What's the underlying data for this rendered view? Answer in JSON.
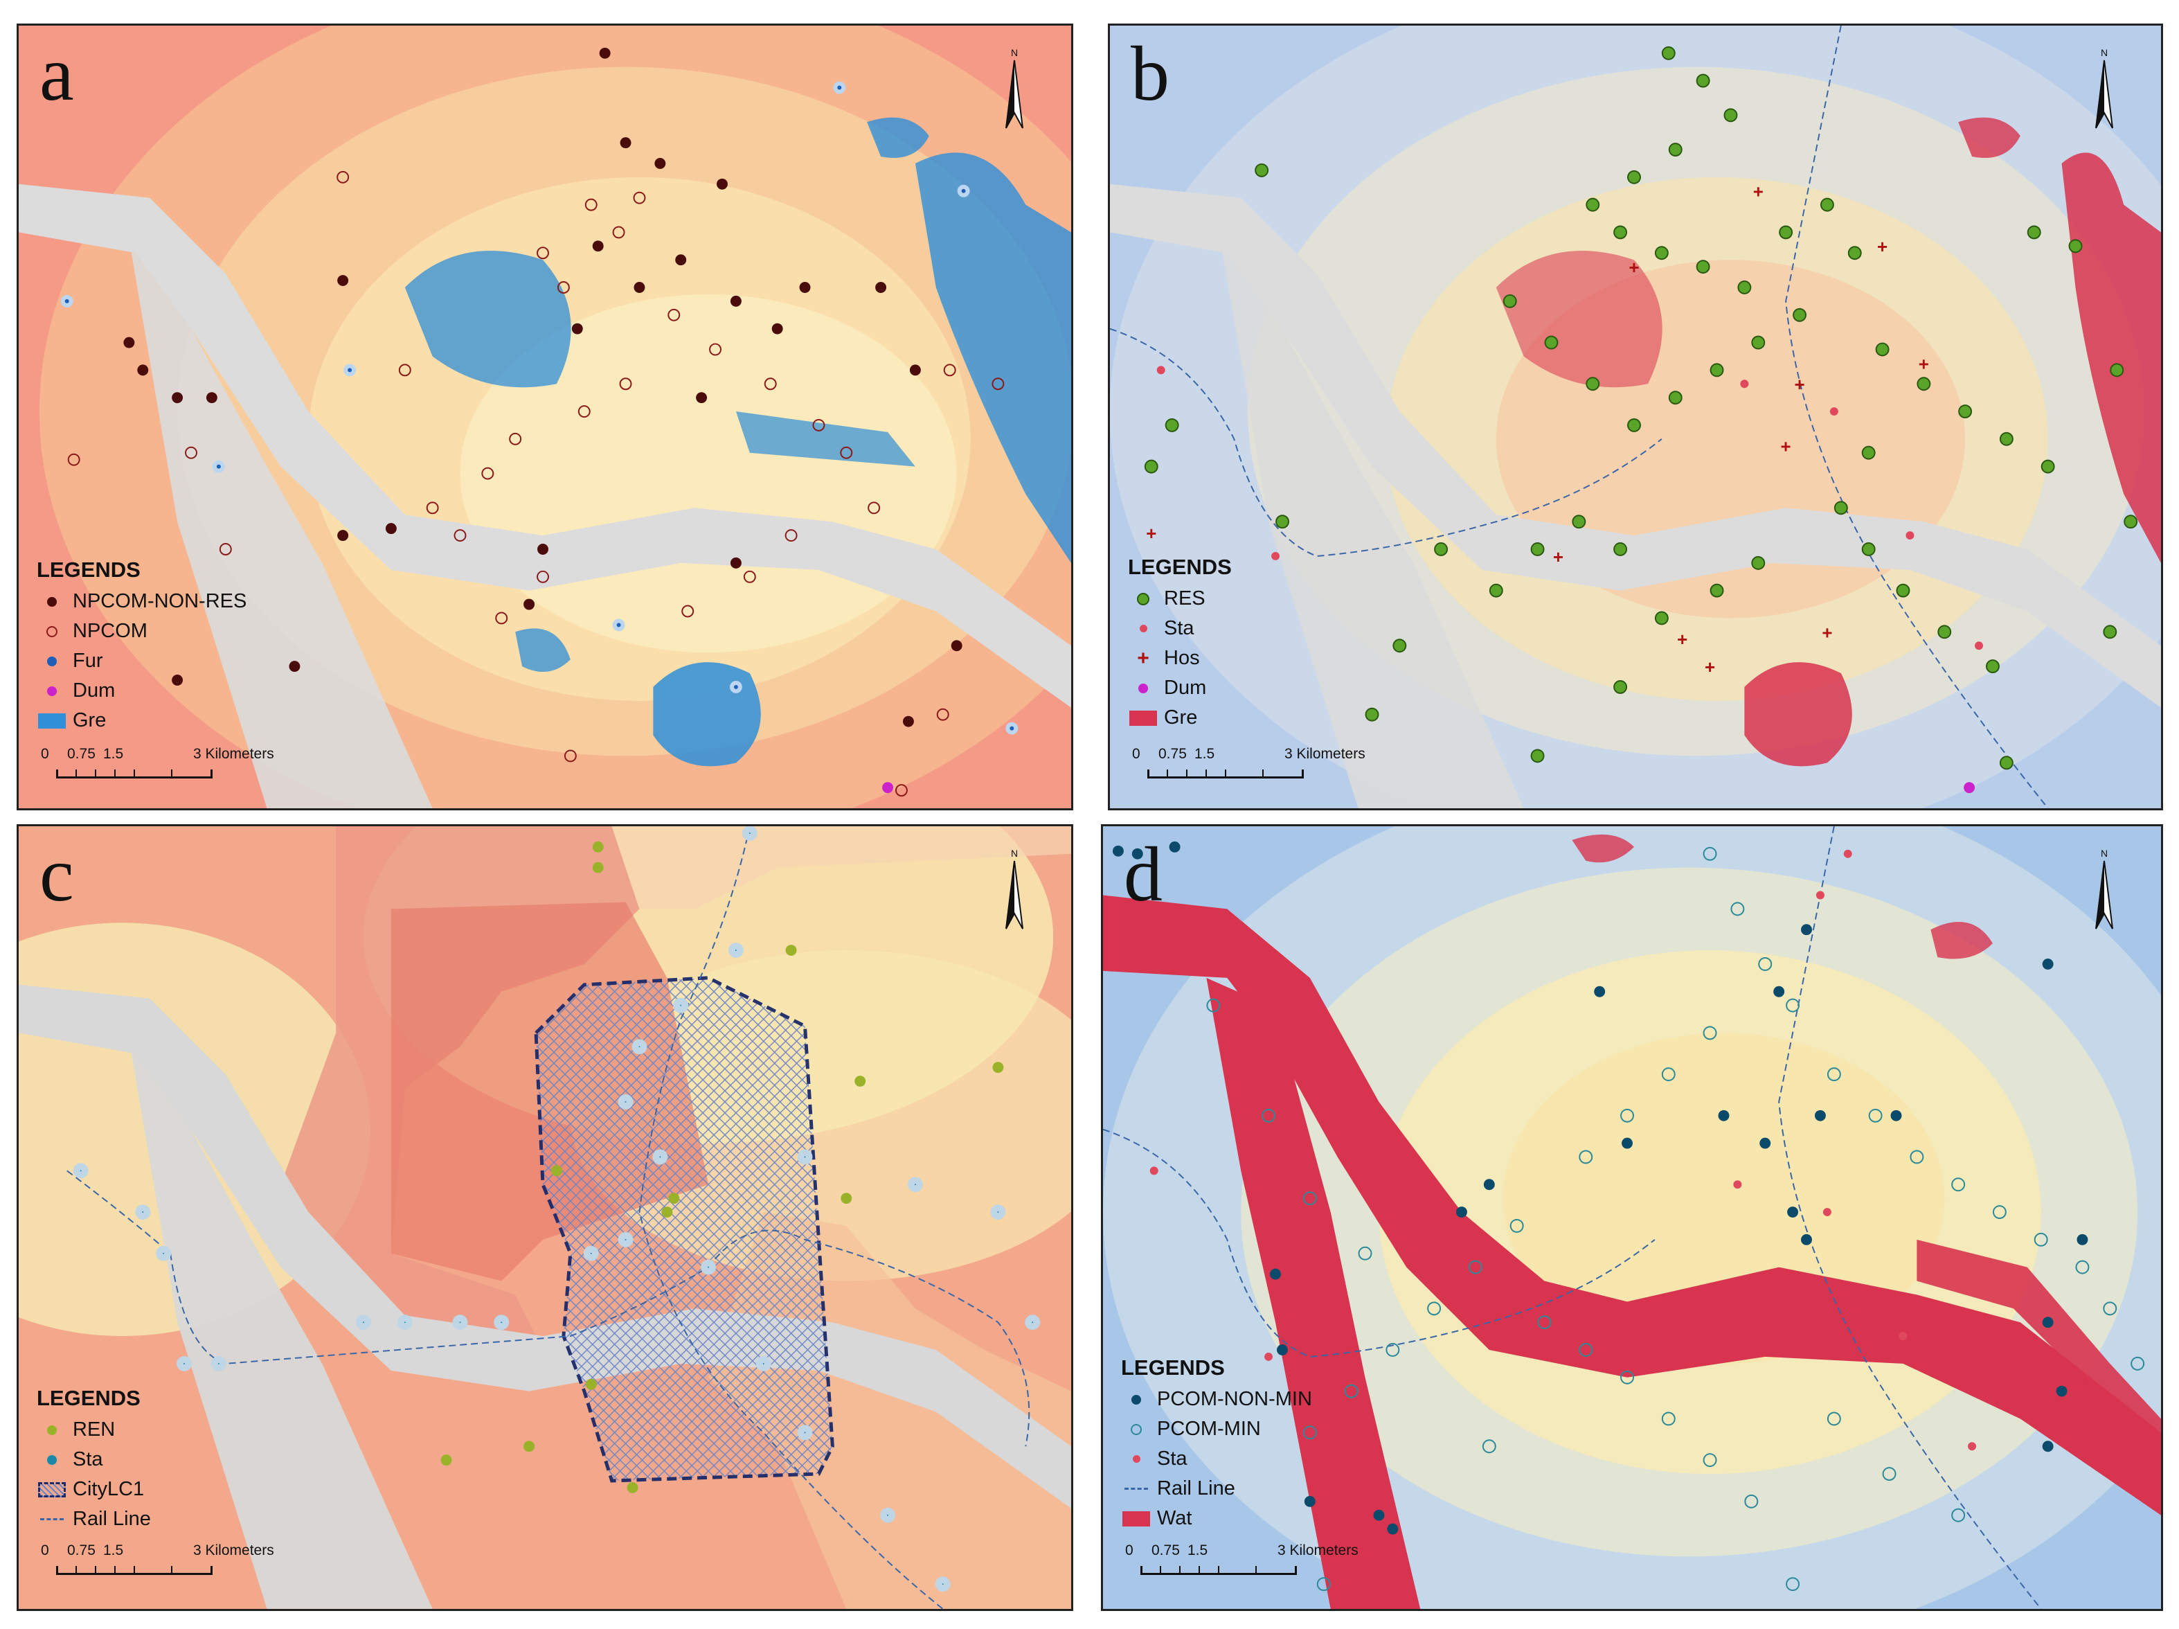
{
  "panels": {
    "a": {
      "letter": "a",
      "legend": {
        "title": "LEGENDS",
        "items": [
          "NPCOM-NON-RES",
          "NPCOM",
          "Fur",
          "Dum",
          "Gre"
        ]
      }
    },
    "b": {
      "letter": "b",
      "legend": {
        "title": "LEGENDS",
        "items": [
          "RES",
          "Sta",
          "Hos",
          "Dum",
          "Gre"
        ]
      }
    },
    "c": {
      "letter": "c",
      "legend": {
        "title": "LEGENDS",
        "items": [
          "REN",
          "Sta",
          "CityLC1",
          "Rail Line"
        ]
      }
    },
    "d": {
      "letter": "d",
      "legend": {
        "title": "LEGENDS",
        "items": [
          "PCOM-NON-MIN",
          "PCOM-MIN",
          "Sta",
          "Rail Line",
          "Wat"
        ]
      }
    }
  },
  "scalebar": {
    "labels": [
      "0",
      "0.75",
      "1.5",
      "3 Kilometers"
    ]
  },
  "north_arrow": {
    "label": "N"
  },
  "colors": {
    "npcom_non_res": "#4a0b0b",
    "npcom": "#8b1a1a",
    "fur": "#1f5fb8",
    "dum": "#cc22cc",
    "gre_blue": "#2f8fd8",
    "res": "#5aa42a",
    "sta": "#e0485e",
    "hos": "#b01010",
    "gre_red": "#d8344f",
    "ren": "#9ab22a",
    "sta_teal": "#1a8aa8",
    "citylc1": "#1b2a6a",
    "rail": "#3a66a8",
    "pcom_non_min": "#0b4a6a",
    "pcom_min": "#2a8a9a",
    "wat": "#d8344f"
  }
}
